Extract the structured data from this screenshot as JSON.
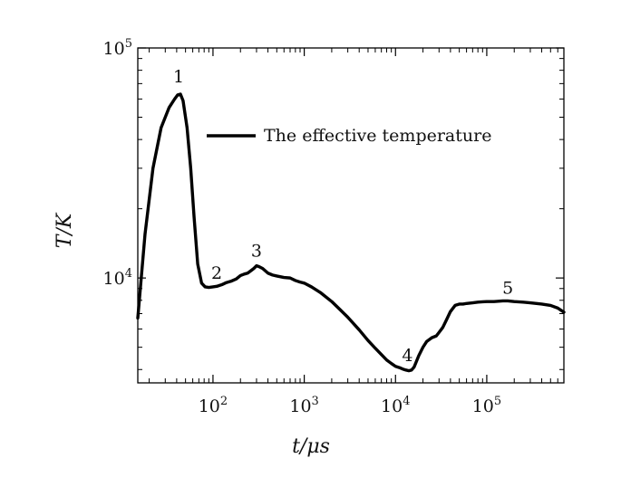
{
  "chart_data": {
    "type": "line",
    "xlabel": "t/μs",
    "ylabel": "T/K",
    "xscale": "log",
    "yscale": "log",
    "xlim": [
      15,
      700000
    ],
    "ylim": [
      3500,
      100000
    ],
    "grid": false,
    "legend_position": "top-right",
    "xticks": [
      {
        "value": 100,
        "base": "10",
        "exp": "2"
      },
      {
        "value": 1000,
        "base": "10",
        "exp": "3"
      },
      {
        "value": 10000,
        "base": "10",
        "exp": "4"
      },
      {
        "value": 100000,
        "base": "10",
        "exp": "5"
      }
    ],
    "yticks": [
      {
        "value": 10000,
        "base": "10",
        "exp": "4"
      },
      {
        "value": 100000,
        "base": "10",
        "exp": "5"
      }
    ],
    "series": [
      {
        "name": "The effective temperature",
        "color": "#000000",
        "x": [
          15,
          18,
          22,
          27,
          33,
          38,
          41,
          44,
          47,
          52,
          57,
          62,
          68,
          75,
          82,
          90,
          100,
          110,
          125,
          140,
          160,
          180,
          200,
          220,
          240,
          260,
          280,
          300,
          320,
          350,
          400,
          450,
          500,
          600,
          700,
          800,
          900,
          1000,
          1200,
          1500,
          2000,
          2500,
          3000,
          4000,
          5000,
          6000,
          7000,
          8000,
          9000,
          10000,
          11000,
          12000,
          13000,
          14000,
          15000,
          16000,
          17000,
          18000,
          20000,
          22000,
          25000,
          28000,
          30000,
          33000,
          36000,
          40000,
          45000,
          50000,
          55000,
          60000,
          70000,
          80000,
          90000,
          100000,
          120000,
          150000,
          170000,
          200000,
          250000,
          300000,
          400000,
          500000,
          600000,
          700000
        ],
        "y": [
          6700,
          15500,
          30000,
          45000,
          55000,
          60000,
          62500,
          63000,
          59000,
          45000,
          30000,
          18500,
          11500,
          9500,
          9150,
          9100,
          9150,
          9200,
          9350,
          9550,
          9700,
          9900,
          10250,
          10400,
          10500,
          10750,
          11000,
          11300,
          11200,
          11000,
          10500,
          10300,
          10200,
          10050,
          10000,
          9750,
          9600,
          9500,
          9150,
          8650,
          7900,
          7250,
          6750,
          5950,
          5350,
          4950,
          4650,
          4400,
          4250,
          4130,
          4080,
          4020,
          3980,
          3950,
          3980,
          4100,
          4350,
          4600,
          5000,
          5300,
          5500,
          5600,
          5800,
          6100,
          6550,
          7150,
          7600,
          7700,
          7700,
          7750,
          7800,
          7850,
          7880,
          7900,
          7900,
          7950,
          7950,
          7900,
          7850,
          7800,
          7700,
          7600,
          7400,
          7100
        ]
      }
    ],
    "annotations": [
      {
        "label": "1",
        "x": 42,
        "y": 71000
      },
      {
        "label": "2",
        "x": 110,
        "y": 9900
      },
      {
        "label": "3",
        "x": 300,
        "y": 12400
      },
      {
        "label": "4",
        "x": 13500,
        "y": 4350
      },
      {
        "label": "5",
        "x": 170000,
        "y": 8550
      }
    ]
  }
}
